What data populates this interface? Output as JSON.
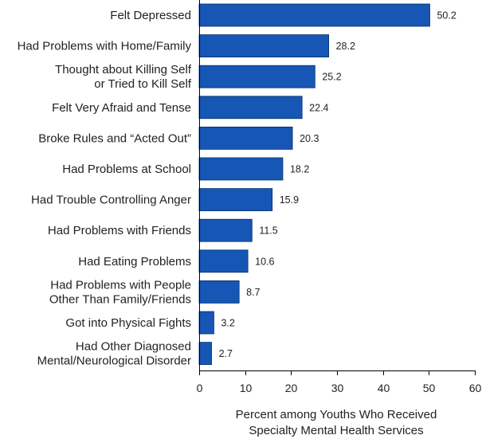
{
  "chart_data": {
    "type": "bar",
    "orientation": "horizontal",
    "categories": [
      [
        "Felt Depressed"
      ],
      [
        "Had Problems with Home/Family"
      ],
      [
        "Thought about Killing Self",
        "or Tried to Kill Self"
      ],
      [
        "Felt Very Afraid and Tense"
      ],
      [
        "Broke Rules and “Acted Out”"
      ],
      [
        "Had Problems at School"
      ],
      [
        "Had Trouble Controlling Anger"
      ],
      [
        "Had Problems with Friends"
      ],
      [
        "Had Eating Problems"
      ],
      [
        "Had Problems with People",
        "Other Than Family/Friends"
      ],
      [
        "Got into Physical Fights"
      ],
      [
        "Had Other Diagnosed",
        "Mental/Neurological Disorder"
      ]
    ],
    "values": [
      50.2,
      28.2,
      25.2,
      22.4,
      20.3,
      18.2,
      15.9,
      11.5,
      10.6,
      8.7,
      3.2,
      2.7
    ],
    "value_labels": [
      "50.2",
      "28.2",
      "25.2",
      "22.4",
      "20.3",
      "18.2",
      "15.9",
      "11.5",
      "10.6",
      "8.7",
      "3.2",
      "2.7"
    ],
    "xlim": [
      0,
      60
    ],
    "xticks": [
      0,
      10,
      20,
      30,
      40,
      50,
      60
    ],
    "xlabel": [
      "Percent among Youths Who Received",
      "Specialty Mental Health Services"
    ],
    "ylabel": "",
    "title": "",
    "grid": false,
    "legend": "none",
    "bar_color": "#1656b4",
    "bar_edge_color": "#0a2f6b"
  }
}
